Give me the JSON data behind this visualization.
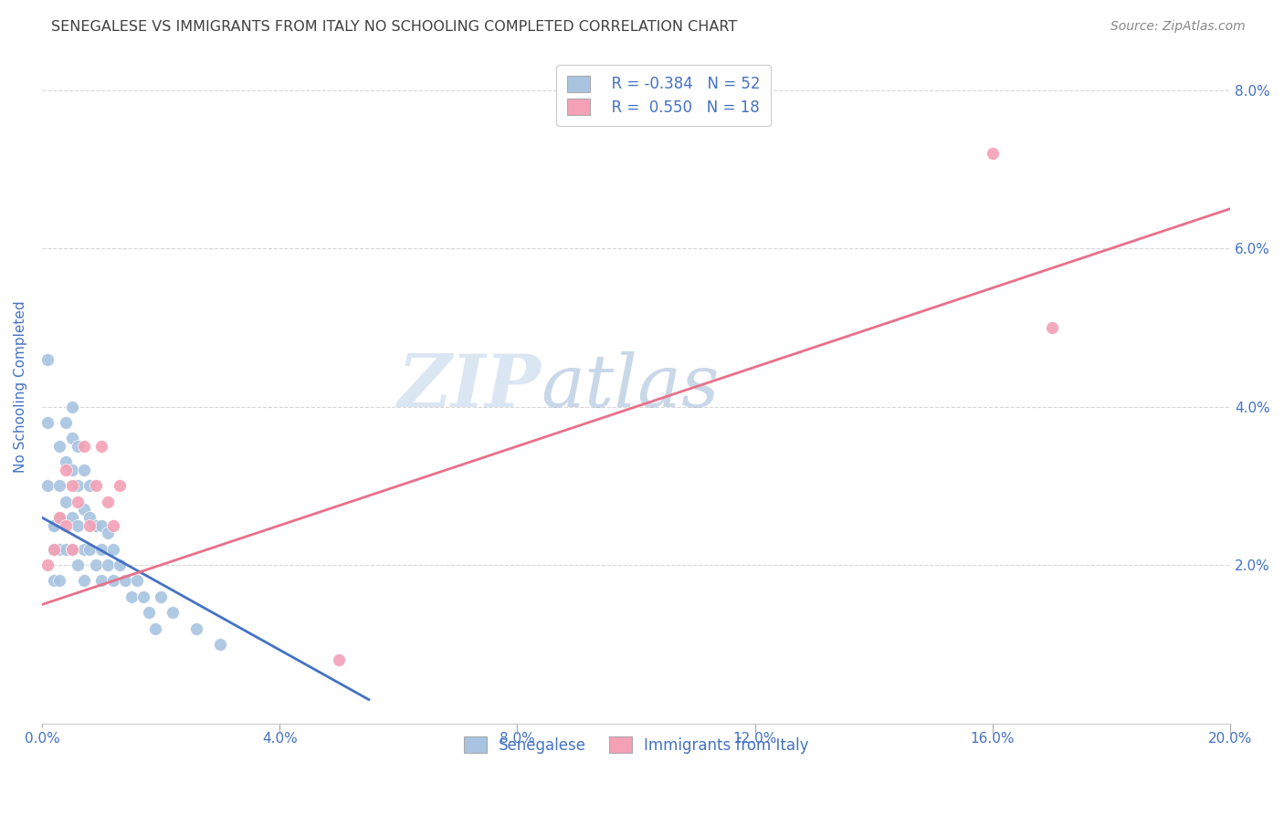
{
  "title": "SENEGALESE VS IMMIGRANTS FROM ITALY NO SCHOOLING COMPLETED CORRELATION CHART",
  "source": "Source: ZipAtlas.com",
  "ylabel": "No Schooling Completed",
  "xlim": [
    0.0,
    0.2
  ],
  "ylim": [
    0.0,
    0.085
  ],
  "xticks": [
    0.0,
    0.04,
    0.08,
    0.12,
    0.16,
    0.2
  ],
  "yticks": [
    0.0,
    0.02,
    0.04,
    0.06,
    0.08
  ],
  "xtick_labels": [
    "0.0%",
    "4.0%",
    "8.0%",
    "12.0%",
    "16.0%",
    "20.0%"
  ],
  "ytick_labels": [
    "",
    "2.0%",
    "4.0%",
    "6.0%",
    "8.0%"
  ],
  "legend_r1": "R = -0.384",
  "legend_n1": "N = 52",
  "legend_r2": "R =  0.550",
  "legend_n2": "N = 18",
  "blue_color": "#a8c4e0",
  "pink_color": "#f4a0b5",
  "line_blue": "#4472c4",
  "line_pink": "#e8708a",
  "background": "#ffffff",
  "grid_color": "#cccccc",
  "title_color": "#404040",
  "axis_label_color": "#4472c4",
  "senegalese_x": [
    0.001,
    0.001,
    0.001,
    0.002,
    0.002,
    0.002,
    0.002,
    0.003,
    0.003,
    0.003,
    0.003,
    0.003,
    0.004,
    0.004,
    0.004,
    0.004,
    0.005,
    0.005,
    0.005,
    0.005,
    0.005,
    0.006,
    0.006,
    0.006,
    0.006,
    0.007,
    0.007,
    0.007,
    0.007,
    0.008,
    0.008,
    0.008,
    0.009,
    0.009,
    0.01,
    0.01,
    0.01,
    0.011,
    0.011,
    0.012,
    0.012,
    0.013,
    0.014,
    0.015,
    0.016,
    0.017,
    0.018,
    0.019,
    0.02,
    0.022,
    0.026,
    0.03
  ],
  "senegalese_y": [
    0.046,
    0.038,
    0.03,
    0.025,
    0.022,
    0.025,
    0.018,
    0.035,
    0.03,
    0.026,
    0.022,
    0.018,
    0.038,
    0.033,
    0.028,
    0.022,
    0.04,
    0.036,
    0.032,
    0.026,
    0.022,
    0.035,
    0.03,
    0.025,
    0.02,
    0.032,
    0.027,
    0.022,
    0.018,
    0.03,
    0.026,
    0.022,
    0.025,
    0.02,
    0.025,
    0.022,
    0.018,
    0.024,
    0.02,
    0.022,
    0.018,
    0.02,
    0.018,
    0.016,
    0.018,
    0.016,
    0.014,
    0.012,
    0.016,
    0.014,
    0.012,
    0.01
  ],
  "italy_x": [
    0.001,
    0.002,
    0.003,
    0.004,
    0.004,
    0.005,
    0.005,
    0.006,
    0.007,
    0.008,
    0.009,
    0.01,
    0.011,
    0.012,
    0.013,
    0.05,
    0.16,
    0.17
  ],
  "italy_y": [
    0.02,
    0.022,
    0.026,
    0.032,
    0.025,
    0.03,
    0.022,
    0.028,
    0.035,
    0.025,
    0.03,
    0.035,
    0.028,
    0.025,
    0.03,
    0.008,
    0.072,
    0.05
  ],
  "watermark_zip": "ZIP",
  "watermark_atlas": "atlas",
  "legend_label1": "Senegalese",
  "legend_label2": "Immigrants from Italy",
  "blue_line_x": [
    0.0,
    0.055
  ],
  "blue_line_y": [
    0.026,
    0.003
  ],
  "pink_line_x": [
    0.0,
    0.2
  ],
  "pink_line_y": [
    0.015,
    0.065
  ]
}
